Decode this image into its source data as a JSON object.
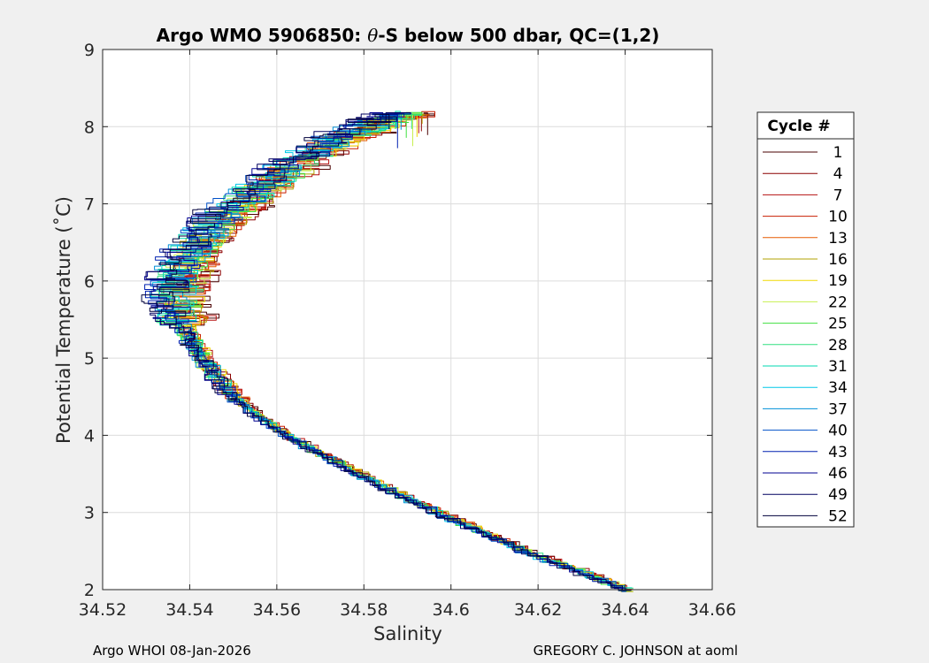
{
  "chart_data": {
    "type": "line",
    "title_prefix": "Argo WMO 5906850: ",
    "title_theta": "θ",
    "title_suffix": "-S below 500 dbar,  QC=(1,2)",
    "xlabel": "Salinity",
    "ylabel": "Potential Temperature (˚C)",
    "xlim": [
      34.52,
      34.66
    ],
    "ylim": [
      2,
      9
    ],
    "xticks": [
      34.52,
      34.54,
      34.56,
      34.58,
      34.6,
      34.62,
      34.64,
      34.66
    ],
    "xtick_labels": [
      "34.52",
      "34.54",
      "34.56",
      "34.58",
      "34.6",
      "34.62",
      "34.64",
      "34.66"
    ],
    "yticks": [
      2,
      3,
      4,
      5,
      6,
      7,
      8,
      9
    ],
    "ytick_labels": [
      "2",
      "3",
      "4",
      "5",
      "6",
      "7",
      "8",
      "9"
    ],
    "grid": true,
    "legend_title": "Cycle #",
    "legend_position": "right-outside",
    "series": [
      {
        "name": "1",
        "color": "#4a0000"
      },
      {
        "name": "4",
        "color": "#8b0000"
      },
      {
        "name": "7",
        "color": "#b51010"
      },
      {
        "name": "10",
        "color": "#c81e00"
      },
      {
        "name": "13",
        "color": "#e65a00"
      },
      {
        "name": "16",
        "color": "#b0a000"
      },
      {
        "name": "19",
        "color": "#f0d800"
      },
      {
        "name": "22",
        "color": "#c8f050"
      },
      {
        "name": "25",
        "color": "#40e040"
      },
      {
        "name": "28",
        "color": "#30e080"
      },
      {
        "name": "31",
        "color": "#00d8b0"
      },
      {
        "name": "34",
        "color": "#00c8e8"
      },
      {
        "name": "37",
        "color": "#0090d8"
      },
      {
        "name": "40",
        "color": "#0050c8"
      },
      {
        "name": "43",
        "color": "#0020b0"
      },
      {
        "name": "46",
        "color": "#000090"
      },
      {
        "name": "49",
        "color": "#000060"
      },
      {
        "name": "52",
        "color": "#00003c"
      }
    ],
    "profile_shape": {
      "deep_end": [
        34.641,
        2.0
      ],
      "knee": [
        34.537,
        5.8
      ],
      "top_end": [
        34.59,
        8.2
      ],
      "points": [
        [
          34.641,
          2.0
        ],
        [
          34.63,
          2.25
        ],
        [
          34.618,
          2.5
        ],
        [
          34.606,
          2.8
        ],
        [
          34.594,
          3.1
        ],
        [
          34.583,
          3.4
        ],
        [
          34.573,
          3.7
        ],
        [
          34.563,
          4.0
        ],
        [
          34.555,
          4.3
        ],
        [
          34.549,
          4.6
        ],
        [
          34.544,
          4.95
        ],
        [
          34.541,
          5.2
        ],
        [
          34.538,
          5.5
        ],
        [
          34.537,
          5.8
        ],
        [
          34.538,
          6.1
        ],
        [
          34.541,
          6.4
        ],
        [
          34.545,
          6.7
        ],
        [
          34.551,
          7.0
        ],
        [
          34.558,
          7.3
        ],
        [
          34.566,
          7.6
        ],
        [
          34.574,
          7.85
        ],
        [
          34.583,
          8.05
        ],
        [
          34.59,
          8.2
        ]
      ]
    }
  },
  "footer": {
    "left": "Argo WHOI 08-Jan-2026",
    "right": "GREGORY C. JOHNSON at aoml"
  }
}
